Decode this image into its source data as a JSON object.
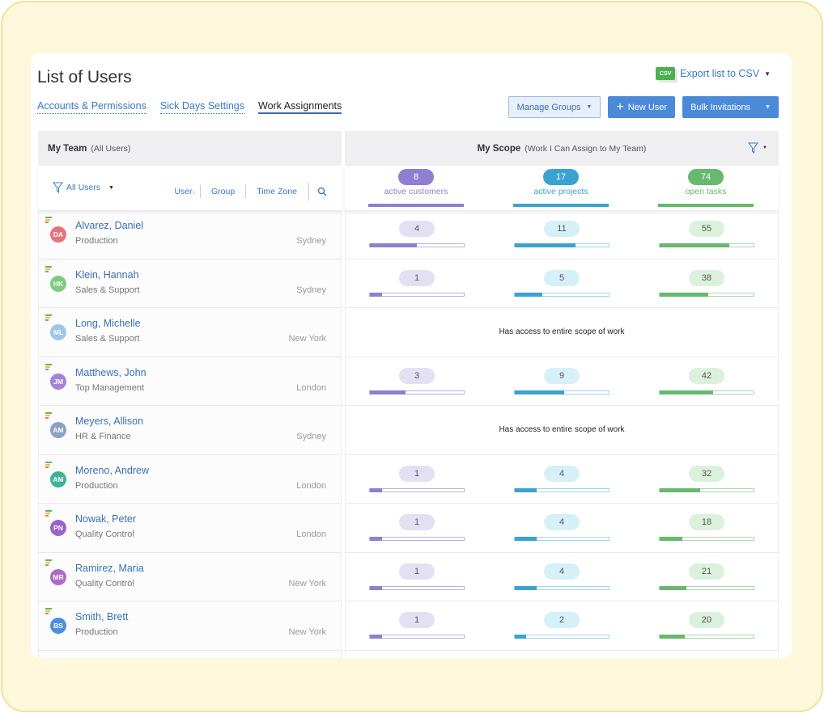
{
  "title": "List of Users",
  "tabs": [
    "Accounts & Permissions",
    "Sick Days Settings",
    "Work Assignments"
  ],
  "export": {
    "icon": "CSV",
    "label": "Export list to CSV"
  },
  "buttons": {
    "manage": "Manage Groups",
    "new_user": "New User",
    "bulk": "Bulk Invitations"
  },
  "team": {
    "title": "My Team",
    "subtitle": "(All Users)",
    "filter": "All Users",
    "cols": [
      "User",
      "Group",
      "Time Zone"
    ]
  },
  "scope": {
    "title": "My Scope",
    "subtitle": "(Work I Can Assign to My Team)",
    "totals": [
      {
        "value": 8,
        "label": "active customers"
      },
      {
        "value": 17,
        "label": "active projects"
      },
      {
        "value": 74,
        "label": "open tasks"
      }
    ]
  },
  "colors": {
    "customers": "#8f7fd0",
    "projects": "#3aa3cf",
    "tasks": "#66b96e"
  },
  "full_access_text": "Has access to entire scope of work",
  "users": [
    {
      "name": "Alvarez, Daniel",
      "initials": "DA",
      "group": "Production",
      "tz": "Sydney",
      "color": "#e8727a",
      "values": [
        4,
        11,
        55
      ]
    },
    {
      "name": "Klein, Hannah",
      "initials": "HK",
      "group": "Sales & Support",
      "tz": "Sydney",
      "color": "#7ccc7c",
      "values": [
        1,
        5,
        38
      ]
    },
    {
      "name": "Long, Michelle",
      "initials": "ML",
      "group": "Sales & Support",
      "tz": "New York",
      "color": "#9cc6ea",
      "values": null
    },
    {
      "name": "Matthews, John",
      "initials": "JM",
      "group": "Top Management",
      "tz": "London",
      "color": "#a584d8",
      "values": [
        3,
        9,
        42
      ]
    },
    {
      "name": "Meyers, Allison",
      "initials": "AM",
      "group": "HR & Finance",
      "tz": "Sydney",
      "color": "#8aa2c4",
      "values": null
    },
    {
      "name": "Moreno, Andrew",
      "initials": "AM",
      "group": "Production",
      "tz": "London",
      "color": "#3fb39a",
      "values": [
        1,
        4,
        32
      ]
    },
    {
      "name": "Nowak, Peter",
      "initials": "PN",
      "group": "Quality Control",
      "tz": "London",
      "color": "#9a62c9",
      "values": [
        1,
        4,
        18
      ]
    },
    {
      "name": "Ramirez, Maria",
      "initials": "MR",
      "group": "Quality Control",
      "tz": "New York",
      "color": "#ae6bc8",
      "values": [
        1,
        4,
        21
      ]
    },
    {
      "name": "Smith, Brett",
      "initials": "BS",
      "group": "Production",
      "tz": "New York",
      "color": "#4f8de0",
      "values": [
        1,
        2,
        20
      ]
    }
  ]
}
